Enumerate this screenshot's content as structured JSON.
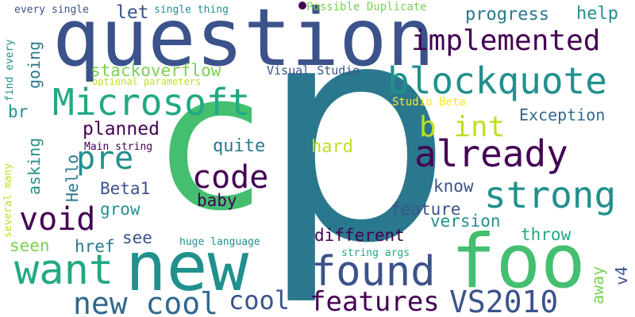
{
  "palette": {
    "background": "#ffffff",
    "dark_purple": "#440154",
    "indigo": "#3b528b",
    "slate_blue": "#31688e",
    "teal_blue": "#2a788e",
    "teal": "#21908d",
    "sea_green": "#22a884",
    "green": "#44bf70",
    "light_green": "#7ad151",
    "lime": "#bddf26",
    "yellow": "#fde725"
  },
  "words": {
    "p": "p",
    "c": "c",
    "question": "question",
    "new": "new",
    "foo": "foo",
    "microsoft": "Microsoft",
    "blockquote": "blockquote",
    "already": "already",
    "implemented": "implemented",
    "strong": "strong",
    "found": "found",
    "want": "want",
    "code": "code",
    "pre": "pre",
    "void": "void",
    "new_cool": "new cool",
    "vs2010": "VS2010",
    "features": "features",
    "cool": "cool",
    "b_int": "b int",
    "stackoverflow": "stackoverflow",
    "progress": "progress",
    "help": "help",
    "let": "let",
    "going": "going",
    "planned": "planned",
    "quite": "quite",
    "hard": "hard",
    "beta1": "Beta1",
    "baby": "baby",
    "grow": "grow",
    "hello": "Hello",
    "asking": "asking",
    "know": "know",
    "feature": "feature",
    "version": "version",
    "different": "different",
    "throw": "throw",
    "see": "see",
    "href": "href",
    "seen": "seen",
    "br": "br",
    "exception": "Exception",
    "visual_studio": "Visual Studio",
    "possible_duplicate": "Possible Duplicate",
    "every_single": "every single",
    "single_thing": "single thing",
    "find_every": "find every",
    "several_many": "several many",
    "optional_parameters": "optional parameters",
    "studio_beta": "Studio Beta",
    "main_string": "Main string",
    "huge_language": "huge language",
    "string_args": "string args",
    "away": "away",
    "v4": "v4"
  }
}
